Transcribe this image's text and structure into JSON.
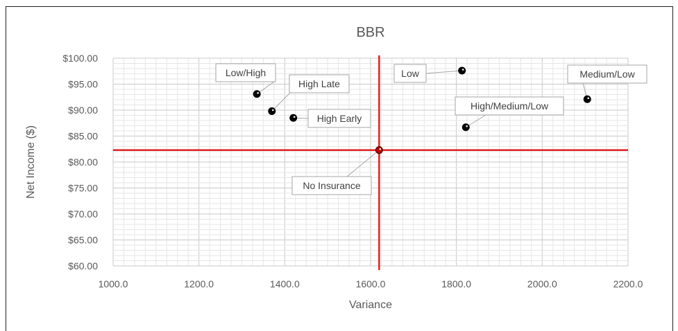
{
  "chart_data": {
    "type": "scatter",
    "title": "BBR",
    "xlabel": "Variance",
    "ylabel": "Net Income ($)",
    "xlim": [
      1000,
      2200
    ],
    "ylim": [
      60,
      100
    ],
    "x_ticks": [
      "1000.0",
      "1200.0",
      "1400.0",
      "1600.0",
      "1800.0",
      "2000.0",
      "2200.0"
    ],
    "y_ticks": [
      "$60.00",
      "$65.00",
      "$70.00",
      "$75.00",
      "$80.00",
      "$85.00",
      "$90.00",
      "$95.00",
      "$100.00"
    ],
    "grid": true,
    "points": [
      {
        "label": "Low/High",
        "x": 1335,
        "y": 93.1
      },
      {
        "label": "High Late",
        "x": 1370,
        "y": 89.8
      },
      {
        "label": "High Early",
        "x": 1420,
        "y": 88.5
      },
      {
        "label": "Low",
        "x": 1813,
        "y": 97.6
      },
      {
        "label": "High/Medium/Low",
        "x": 1822,
        "y": 86.7
      },
      {
        "label": "Medium/Low",
        "x": 2105,
        "y": 92.1
      },
      {
        "label": "No Insurance",
        "x": 1620,
        "y": 82.3
      }
    ],
    "reference_lines": {
      "x": 1620,
      "y": 82.3,
      "color": "#e02020"
    },
    "point_color": "#000000"
  }
}
